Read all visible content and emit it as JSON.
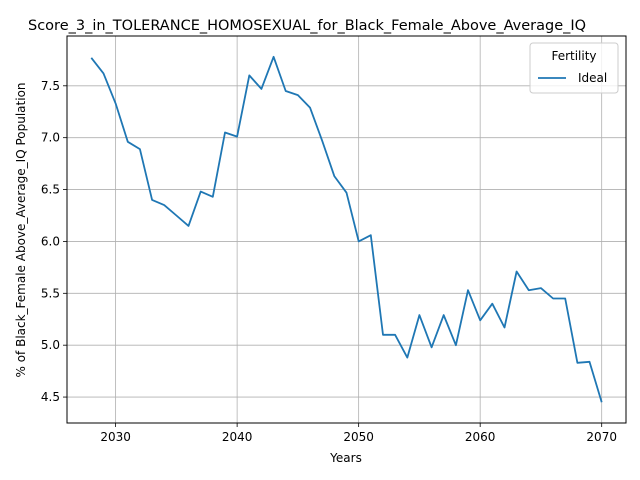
{
  "chart_data": {
    "type": "line",
    "title": "Score_3_in_TOLERANCE_HOMOSEXUAL_for_Black_Female_Above_Average_IQ",
    "xlabel": "Years",
    "ylabel": "% of Black_Female Above_Average_IQ Population",
    "xlim": [
      2026,
      2072
    ],
    "ylim": [
      4.25,
      7.98
    ],
    "xticks": [
      2030,
      2040,
      2050,
      2060,
      2070
    ],
    "yticks": [
      4.5,
      5.0,
      5.5,
      6.0,
      6.5,
      7.0,
      7.5
    ],
    "ytick_labels": [
      "4.5",
      "5.0",
      "5.5",
      "6.0",
      "6.5",
      "7.0",
      "7.5"
    ],
    "grid": true,
    "legend": {
      "title": "Fertility",
      "placement": "top-right"
    },
    "x": [
      2028,
      2029,
      2030,
      2031,
      2032,
      2033,
      2034,
      2035,
      2036,
      2037,
      2038,
      2039,
      2040,
      2041,
      2042,
      2043,
      2044,
      2045,
      2046,
      2047,
      2048,
      2049,
      2050,
      2051,
      2052,
      2053,
      2054,
      2055,
      2056,
      2057,
      2058,
      2059,
      2060,
      2061,
      2062,
      2063,
      2064,
      2065,
      2066,
      2067,
      2068,
      2069,
      2070
    ],
    "series": [
      {
        "name": "Ideal",
        "color": "#1f77b4",
        "values": [
          7.77,
          7.62,
          7.33,
          6.96,
          6.89,
          6.4,
          6.35,
          6.25,
          6.15,
          6.48,
          6.43,
          7.05,
          7.01,
          7.6,
          7.47,
          7.78,
          7.45,
          7.41,
          7.29,
          6.97,
          6.63,
          6.47,
          6.0,
          6.06,
          5.1,
          5.1,
          4.88,
          5.29,
          4.98,
          5.29,
          5.0,
          5.53,
          5.24,
          5.4,
          5.17,
          5.71,
          5.53,
          5.55,
          5.45,
          5.45,
          4.83,
          4.84,
          4.45
        ]
      }
    ]
  }
}
